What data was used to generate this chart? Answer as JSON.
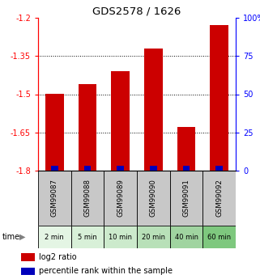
{
  "title": "GDS2578 / 1626",
  "samples": [
    "GSM99087",
    "GSM99088",
    "GSM99089",
    "GSM99090",
    "GSM99091",
    "GSM99092"
  ],
  "time_labels": [
    "2 min",
    "5 min",
    "10 min",
    "20 min",
    "40 min",
    "60 min"
  ],
  "log2_values": [
    -1.5,
    -1.46,
    -1.41,
    -1.32,
    -1.63,
    -1.23
  ],
  "ylim_left": [
    -1.8,
    -1.2
  ],
  "ylim_right": [
    0,
    100
  ],
  "yticks_left": [
    -1.8,
    -1.65,
    -1.5,
    -1.35,
    -1.2
  ],
  "yticks_right": [
    0,
    25,
    50,
    75,
    100
  ],
  "bar_color": "#cc0000",
  "blue_color": "#0000bb",
  "gsm_bg_color": "#c8c8c8",
  "time_bg_colors": [
    "#e4f5e4",
    "#d8f0d8",
    "#cceacc",
    "#b8e0b8",
    "#a0d4a0",
    "#7ec87e"
  ],
  "legend_red_label": "log2 ratio",
  "legend_blue_label": "percentile rank within the sample",
  "bar_width": 0.55
}
